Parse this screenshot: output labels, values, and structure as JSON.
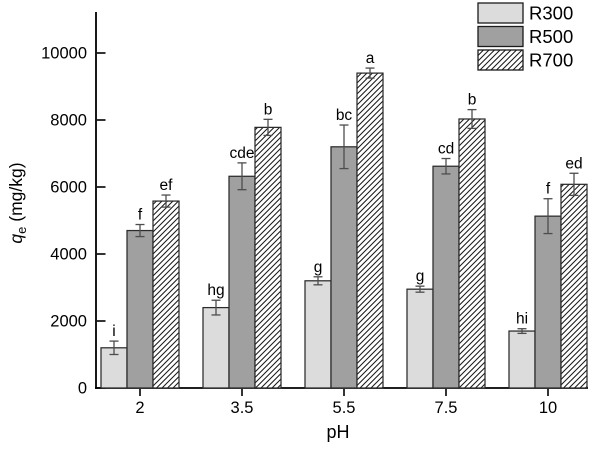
{
  "chart_data": {
    "type": "bar",
    "title": "",
    "xlabel": "pH",
    "ylabel": "qe (mg/kg)",
    "ylabel_parts": {
      "symbol": "q",
      "subscript": "e",
      "units": " (mg/kg)"
    },
    "categories": [
      "2",
      "3.5",
      "5.5",
      "7.5",
      "10"
    ],
    "y_ticks": [
      0,
      2000,
      4000,
      6000,
      8000,
      10000
    ],
    "ylim": [
      0,
      11200
    ],
    "grid": false,
    "legend_position": "top-right",
    "series": [
      {
        "name": "R300",
        "pattern": "solid",
        "fill": "#dcdcdc",
        "values": [
          1200,
          2400,
          3200,
          2950,
          1700
        ],
        "errors": [
          200,
          220,
          120,
          90,
          70
        ],
        "sig_labels": [
          "i",
          "hg",
          "g",
          "g",
          "hi"
        ]
      },
      {
        "name": "R500",
        "pattern": "solid",
        "fill": "#a0a0a0",
        "values": [
          4700,
          6320,
          7200,
          6620,
          5130
        ],
        "errors": [
          180,
          400,
          650,
          230,
          520
        ],
        "sig_labels": [
          "f",
          "cde",
          "bc",
          "cd",
          "f"
        ]
      },
      {
        "name": "R700",
        "pattern": "diagonal-hatch",
        "fill": "#ffffff",
        "values": [
          5580,
          7780,
          9400,
          8030,
          6080
        ],
        "errors": [
          180,
          240,
          150,
          280,
          330
        ],
        "sig_labels": [
          "ef",
          "b",
          "a",
          "b",
          "ed"
        ]
      }
    ],
    "colors": {
      "bar_stroke": "#2b2b2b",
      "error_bar": "#4d4d4d",
      "axis": "#000000",
      "text": "#000000",
      "hatch": "#1a1a1a",
      "background": "#ffffff"
    }
  }
}
